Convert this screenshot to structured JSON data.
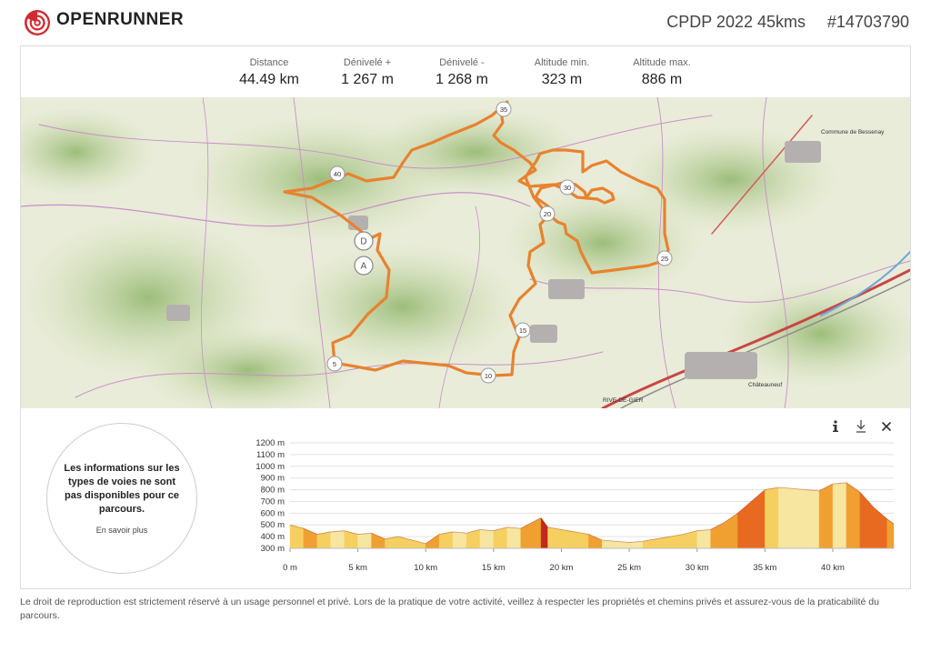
{
  "header": {
    "brand": "OPENRUNNER",
    "route_title": "CPDP 2022 45kms",
    "route_id": "#14703790",
    "brand_color": "#d32a2f"
  },
  "stats": [
    {
      "label": "Distance",
      "value": "44.49 km"
    },
    {
      "label": "Dénivelé +",
      "value": "1 267 m"
    },
    {
      "label": "Dénivelé -",
      "value": "1 268 m"
    },
    {
      "label": "Altitude min.",
      "value": "323 m"
    },
    {
      "label": "Altitude max.",
      "value": "886 m"
    }
  ],
  "map": {
    "route_color": "#e8822e",
    "start_label": "D",
    "finish_label": "A",
    "km_markers": [
      "5",
      "10",
      "15",
      "20",
      "25",
      "30",
      "35",
      "40"
    ],
    "place_labels": [
      "Châteauneuf",
      "RIVE-DE-GIER",
      "Commune de Bessenay"
    ]
  },
  "info": {
    "text": "Les informations sur les types de voies ne sont pas disponibles pour ce parcours.",
    "link": "En savoir plus"
  },
  "toolbar": {
    "info_icon": "info-icon",
    "download_icon": "download-icon",
    "close_icon": "close-icon"
  },
  "chart_data": {
    "type": "area",
    "xlabel": "",
    "ylabel": "",
    "x_ticks": [
      "0 m",
      "5 km",
      "10 km",
      "15 km",
      "20 km",
      "25 km",
      "30 km",
      "35 km",
      "40 km"
    ],
    "y_ticks": [
      "300 m",
      "400 m",
      "500 m",
      "600 m",
      "700 m",
      "800 m",
      "900 m",
      "1000 m",
      "1100 m",
      "1200 m"
    ],
    "xlim": [
      0,
      44.49
    ],
    "ylim": [
      300,
      1200
    ],
    "grid": true,
    "x": [
      0,
      1,
      2,
      3,
      4,
      5,
      6,
      7,
      8,
      9,
      10,
      11,
      12,
      13,
      14,
      15,
      16,
      17,
      18,
      18.5,
      19,
      20,
      21,
      22,
      23,
      24,
      25,
      26,
      27,
      28,
      29,
      30,
      31,
      32,
      33,
      34,
      35,
      36,
      37,
      38,
      39,
      40,
      41,
      42,
      43,
      44,
      44.49
    ],
    "y": [
      500,
      470,
      420,
      440,
      450,
      420,
      430,
      380,
      400,
      370,
      340,
      420,
      440,
      430,
      460,
      450,
      480,
      470,
      530,
      560,
      480,
      460,
      440,
      420,
      370,
      360,
      350,
      360,
      380,
      400,
      420,
      450,
      460,
      520,
      600,
      700,
      800,
      820,
      810,
      800,
      790,
      850,
      860,
      780,
      650,
      550,
      510
    ],
    "colors": [
      "#f6e6a0",
      "#f5d060",
      "#f0a030",
      "#e86a20",
      "#c0281a"
    ]
  }
}
